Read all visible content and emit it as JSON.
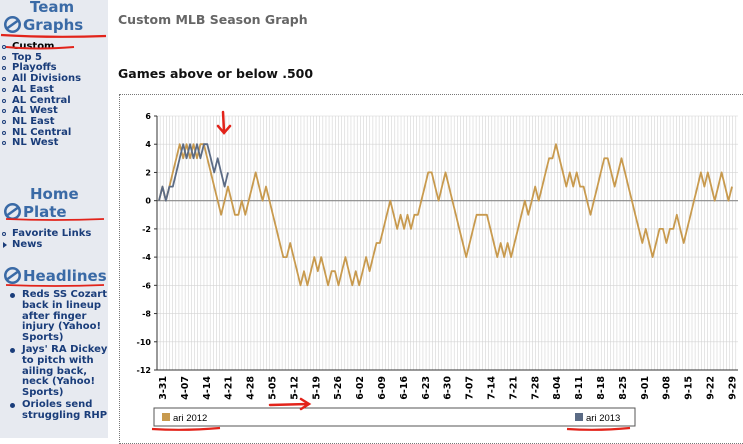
{
  "sidebar": {
    "team_graphs": {
      "line1": "Team",
      "line2": "Graphs"
    },
    "team_items": [
      {
        "label": "Custom",
        "active": true
      },
      {
        "label": "Top 5"
      },
      {
        "label": "Playoffs"
      },
      {
        "label": "All Divisions"
      },
      {
        "label": "AL East"
      },
      {
        "label": "AL Central"
      },
      {
        "label": "AL West"
      },
      {
        "label": "NL East"
      },
      {
        "label": "NL Central"
      },
      {
        "label": "NL West"
      }
    ],
    "home_plate": {
      "line1": "Home",
      "line2": "Plate"
    },
    "home_items": [
      {
        "label": "Favorite Links"
      },
      {
        "label": "News"
      }
    ],
    "headlines_title": "Headlines",
    "headlines": [
      "Reds SS Cozart back in lineup after finger injury (Yahoo! Sports)",
      "Jays' RA Dickey to pitch with ailing back, neck (Yahoo! Sports)",
      "Orioles send struggling RHP"
    ]
  },
  "page_title": "Custom MLB Season Graph",
  "chart_title": "Games above or below .500",
  "colors": {
    "ari_2012": "#c89a4e",
    "ari_2013": "#5b6b85",
    "grid": "#d4d4d4",
    "annotation": "#e2231a",
    "brand": "#3a6aa6"
  },
  "chart_data": {
    "type": "line",
    "title": "Games above or below .500",
    "ylim": [
      -12,
      6
    ],
    "y_ticks": [
      6,
      4,
      2,
      0,
      -2,
      -4,
      -6,
      -8,
      -10,
      -12
    ],
    "x_tick_labels": [
      "3-31",
      "4-07",
      "4-14",
      "4-21",
      "4-28",
      "5-05",
      "5-12",
      "5-19",
      "5-26",
      "6-02",
      "6-09",
      "6-16",
      "6-23",
      "6-30",
      "7-07",
      "7-14",
      "7-21",
      "7-28",
      "8-04",
      "8-11",
      "8-18",
      "8-25",
      "9-01",
      "9-08",
      "9-15",
      "9-22",
      "9-29"
    ],
    "series": [
      {
        "name": "ari 2012",
        "values": [
          0,
          1,
          0,
          1,
          2,
          3,
          4,
          3,
          4,
          3,
          4,
          3,
          4,
          4,
          3,
          2,
          1,
          0,
          -1,
          0,
          1,
          0,
          -1,
          -1,
          0,
          -1,
          0,
          1,
          2,
          1,
          0,
          1,
          0,
          -1,
          -2,
          -3,
          -4,
          -4,
          -3,
          -4,
          -5,
          -6,
          -5,
          -6,
          -5,
          -4,
          -5,
          -4,
          -5,
          -6,
          -5,
          -5,
          -6,
          -5,
          -4,
          -5,
          -6,
          -5,
          -6,
          -5,
          -4,
          -5,
          -4,
          -3,
          -3,
          -2,
          -1,
          0,
          -1,
          -2,
          -1,
          -2,
          -1,
          -2,
          -1,
          -1,
          0,
          1,
          2,
          2,
          1,
          0,
          1,
          2,
          1,
          0,
          -1,
          -2,
          -3,
          -4,
          -3,
          -2,
          -1,
          -1,
          -1,
          -1,
          -2,
          -3,
          -4,
          -3,
          -4,
          -3,
          -4,
          -3,
          -2,
          -1,
          0,
          -1,
          0,
          1,
          0,
          1,
          2,
          3,
          3,
          4,
          3,
          2,
          1,
          2,
          1,
          2,
          1,
          1,
          0,
          -1,
          0,
          1,
          2,
          3,
          3,
          2,
          1,
          2,
          3,
          2,
          1,
          0,
          -1,
          -2,
          -3,
          -2,
          -3,
          -4,
          -3,
          -2,
          -2,
          -3,
          -2,
          -2,
          -1,
          -2,
          -3,
          -2,
          -1,
          0,
          1,
          2,
          1,
          2,
          1,
          0,
          1,
          2,
          1,
          0,
          1
        ]
      },
      {
        "name": "ari 2013",
        "values": [
          0,
          1,
          0,
          1,
          1,
          2,
          3,
          4,
          3,
          4,
          3,
          4,
          3,
          4,
          4,
          3,
          2,
          3,
          2,
          1,
          2
        ]
      }
    ],
    "legend": [
      "ari 2012",
      "ari 2013"
    ],
    "legend_placement": "bottom",
    "grid": true
  }
}
